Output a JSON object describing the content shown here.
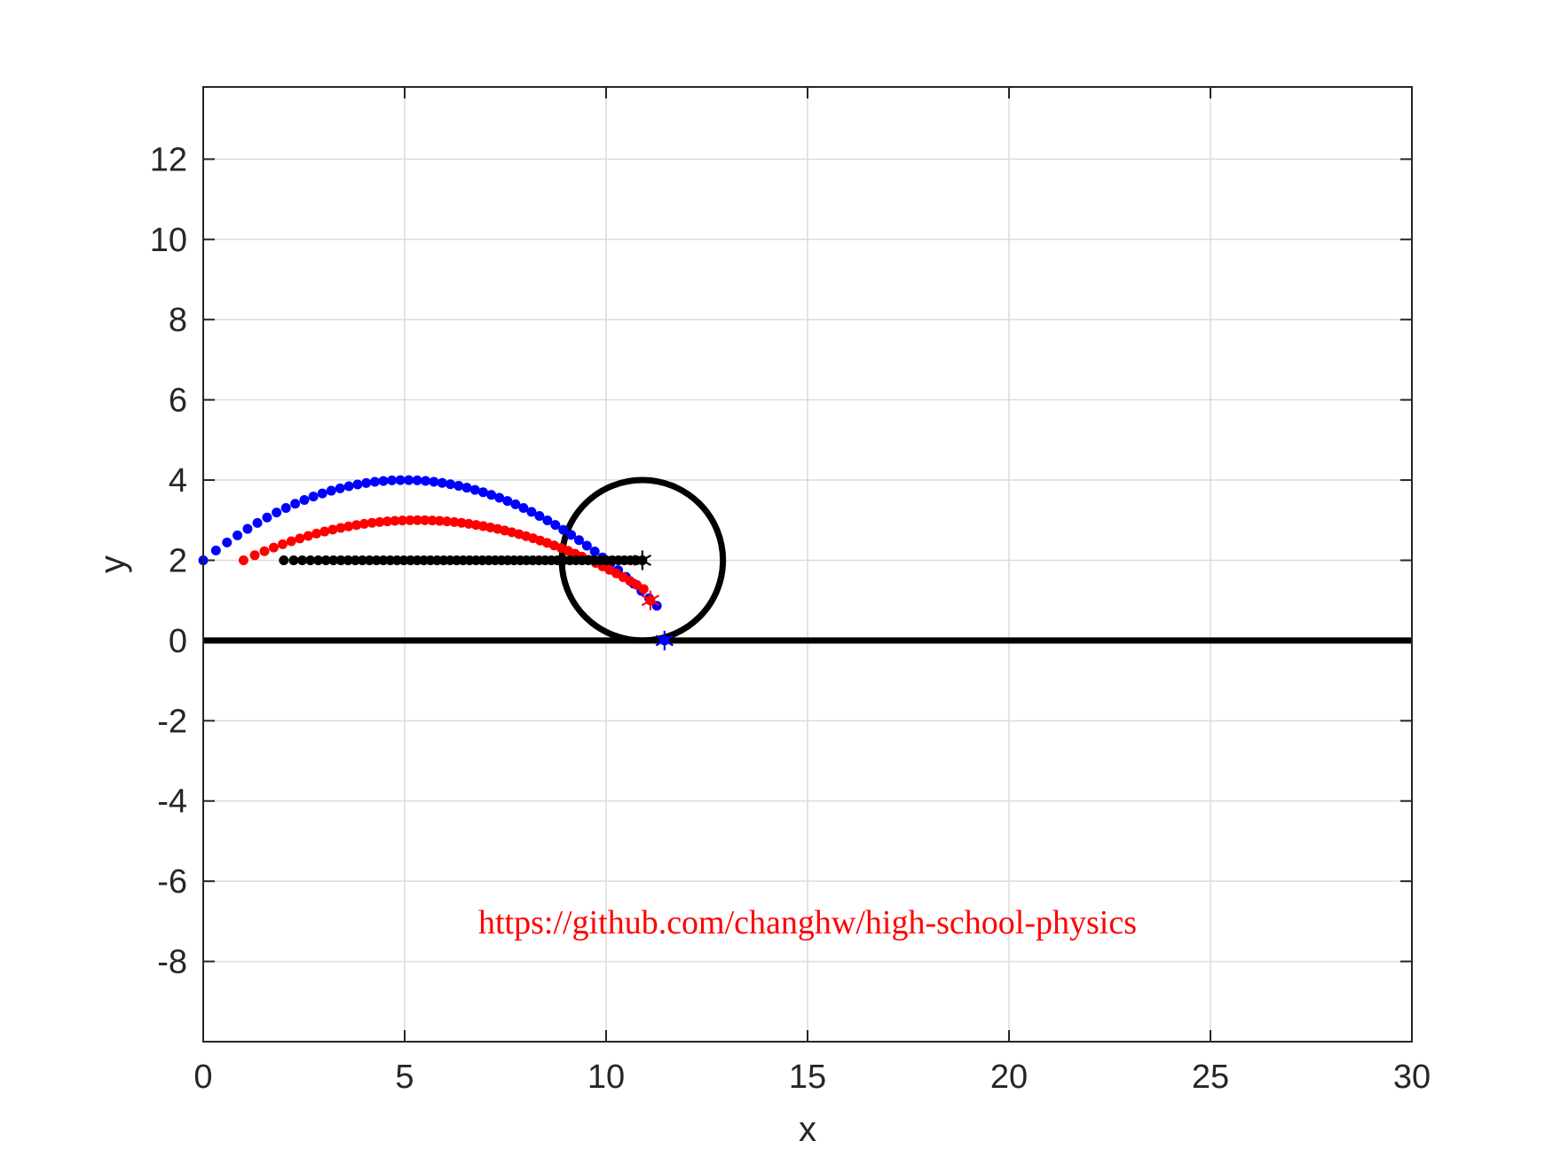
{
  "chart_data": {
    "type": "scatter",
    "xlabel": "x",
    "ylabel": "y",
    "xlim": [
      0,
      30
    ],
    "ylim": [
      -10,
      13.8
    ],
    "xticks": [
      0,
      5,
      10,
      15,
      20,
      25,
      30
    ],
    "yticks": [
      -8,
      -6,
      -4,
      -2,
      0,
      2,
      4,
      6,
      8,
      10,
      12
    ],
    "grid": true,
    "ground_line": {
      "y": 0,
      "x_range": [
        0,
        30
      ],
      "color": "#000000"
    },
    "circle": {
      "center": [
        10.9,
        2
      ],
      "radius": 2,
      "color": "#000000"
    },
    "trajectories": [
      {
        "color": "#0000ff",
        "start": [
          0,
          2
        ],
        "vertex": [
          5,
          4
        ],
        "end": [
          11.45,
          0
        ],
        "points": 55
      },
      {
        "color": "#ff0000",
        "start": [
          1,
          2
        ],
        "vertex": [
          5.3,
          3
        ],
        "end": [
          11.1,
          1
        ],
        "points": 55
      },
      {
        "color": "#000000",
        "start": [
          2,
          2
        ],
        "vertex": [
          2,
          2
        ],
        "end": [
          10.9,
          2
        ],
        "points": 55
      }
    ],
    "annotation": {
      "text": "https://github.com/changhw/high-school-physics",
      "x": 15,
      "y": -7.3,
      "color": "#ff0000"
    }
  }
}
